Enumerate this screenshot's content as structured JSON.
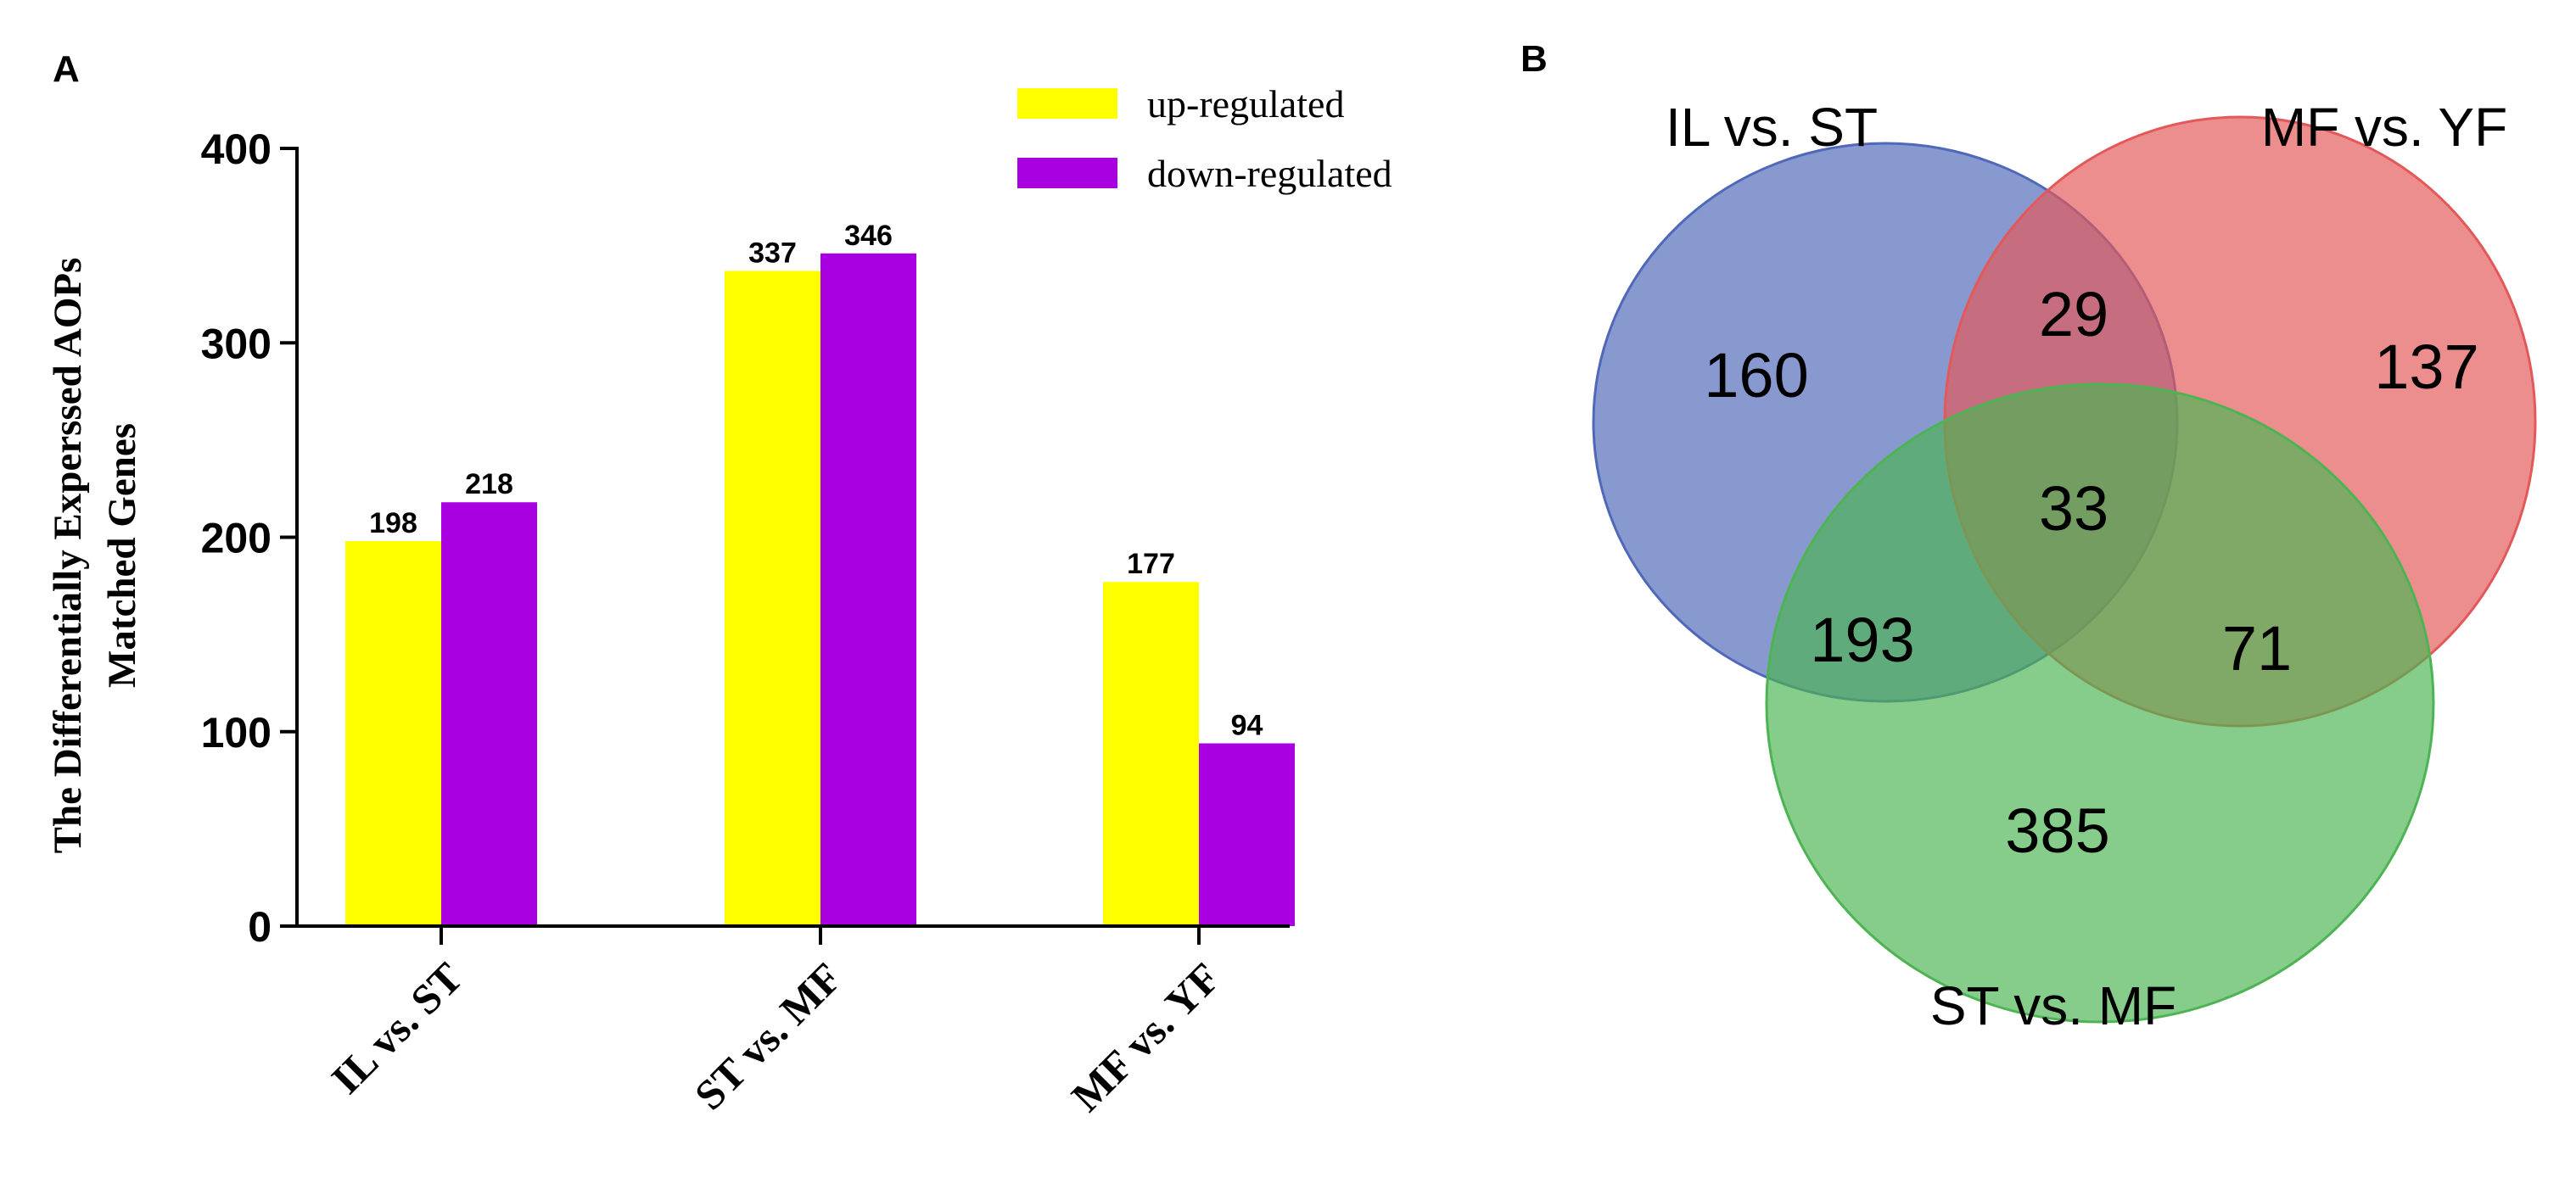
{
  "chart_data": [
    {
      "type": "bar",
      "panel": "A",
      "title": "",
      "xlabel": "",
      "ylabel": [
        "The Differentially Experssed AOPs",
        "Matched Genes"
      ],
      "ylim": [
        0,
        400
      ],
      "yticks": [
        0,
        100,
        200,
        300,
        400
      ],
      "categories": [
        "IL vs. ST",
        "ST vs. MF",
        "MF vs. YF"
      ],
      "legend_position": "top-right",
      "series": [
        {
          "name": "up-regulated",
          "color": "#ffff00",
          "values": [
            198,
            337,
            177
          ]
        },
        {
          "name": "down-regulated",
          "color": "#a800e0",
          "values": [
            218,
            346,
            94
          ]
        }
      ]
    },
    {
      "type": "venn",
      "panel": "B",
      "sets": [
        {
          "name": "IL vs. ST",
          "color": "#5068b9"
        },
        {
          "name": "MF vs. YF",
          "color": "#e35858"
        },
        {
          "name": "ST vs. MF",
          "color": "#4db453"
        }
      ],
      "regions": [
        {
          "sets": [
            "IL vs. ST"
          ],
          "value": 160
        },
        {
          "sets": [
            "MF vs. YF"
          ],
          "value": 137
        },
        {
          "sets": [
            "ST vs. MF"
          ],
          "value": 385
        },
        {
          "sets": [
            "IL vs. ST",
            "MF vs. YF"
          ],
          "value": 29
        },
        {
          "sets": [
            "IL vs. ST",
            "ST vs. MF"
          ],
          "value": 193
        },
        {
          "sets": [
            "MF vs. YF",
            "ST vs. MF"
          ],
          "value": 71
        },
        {
          "sets": [
            "IL vs. ST",
            "MF vs. YF",
            "ST vs. MF"
          ],
          "value": 33
        }
      ]
    }
  ]
}
